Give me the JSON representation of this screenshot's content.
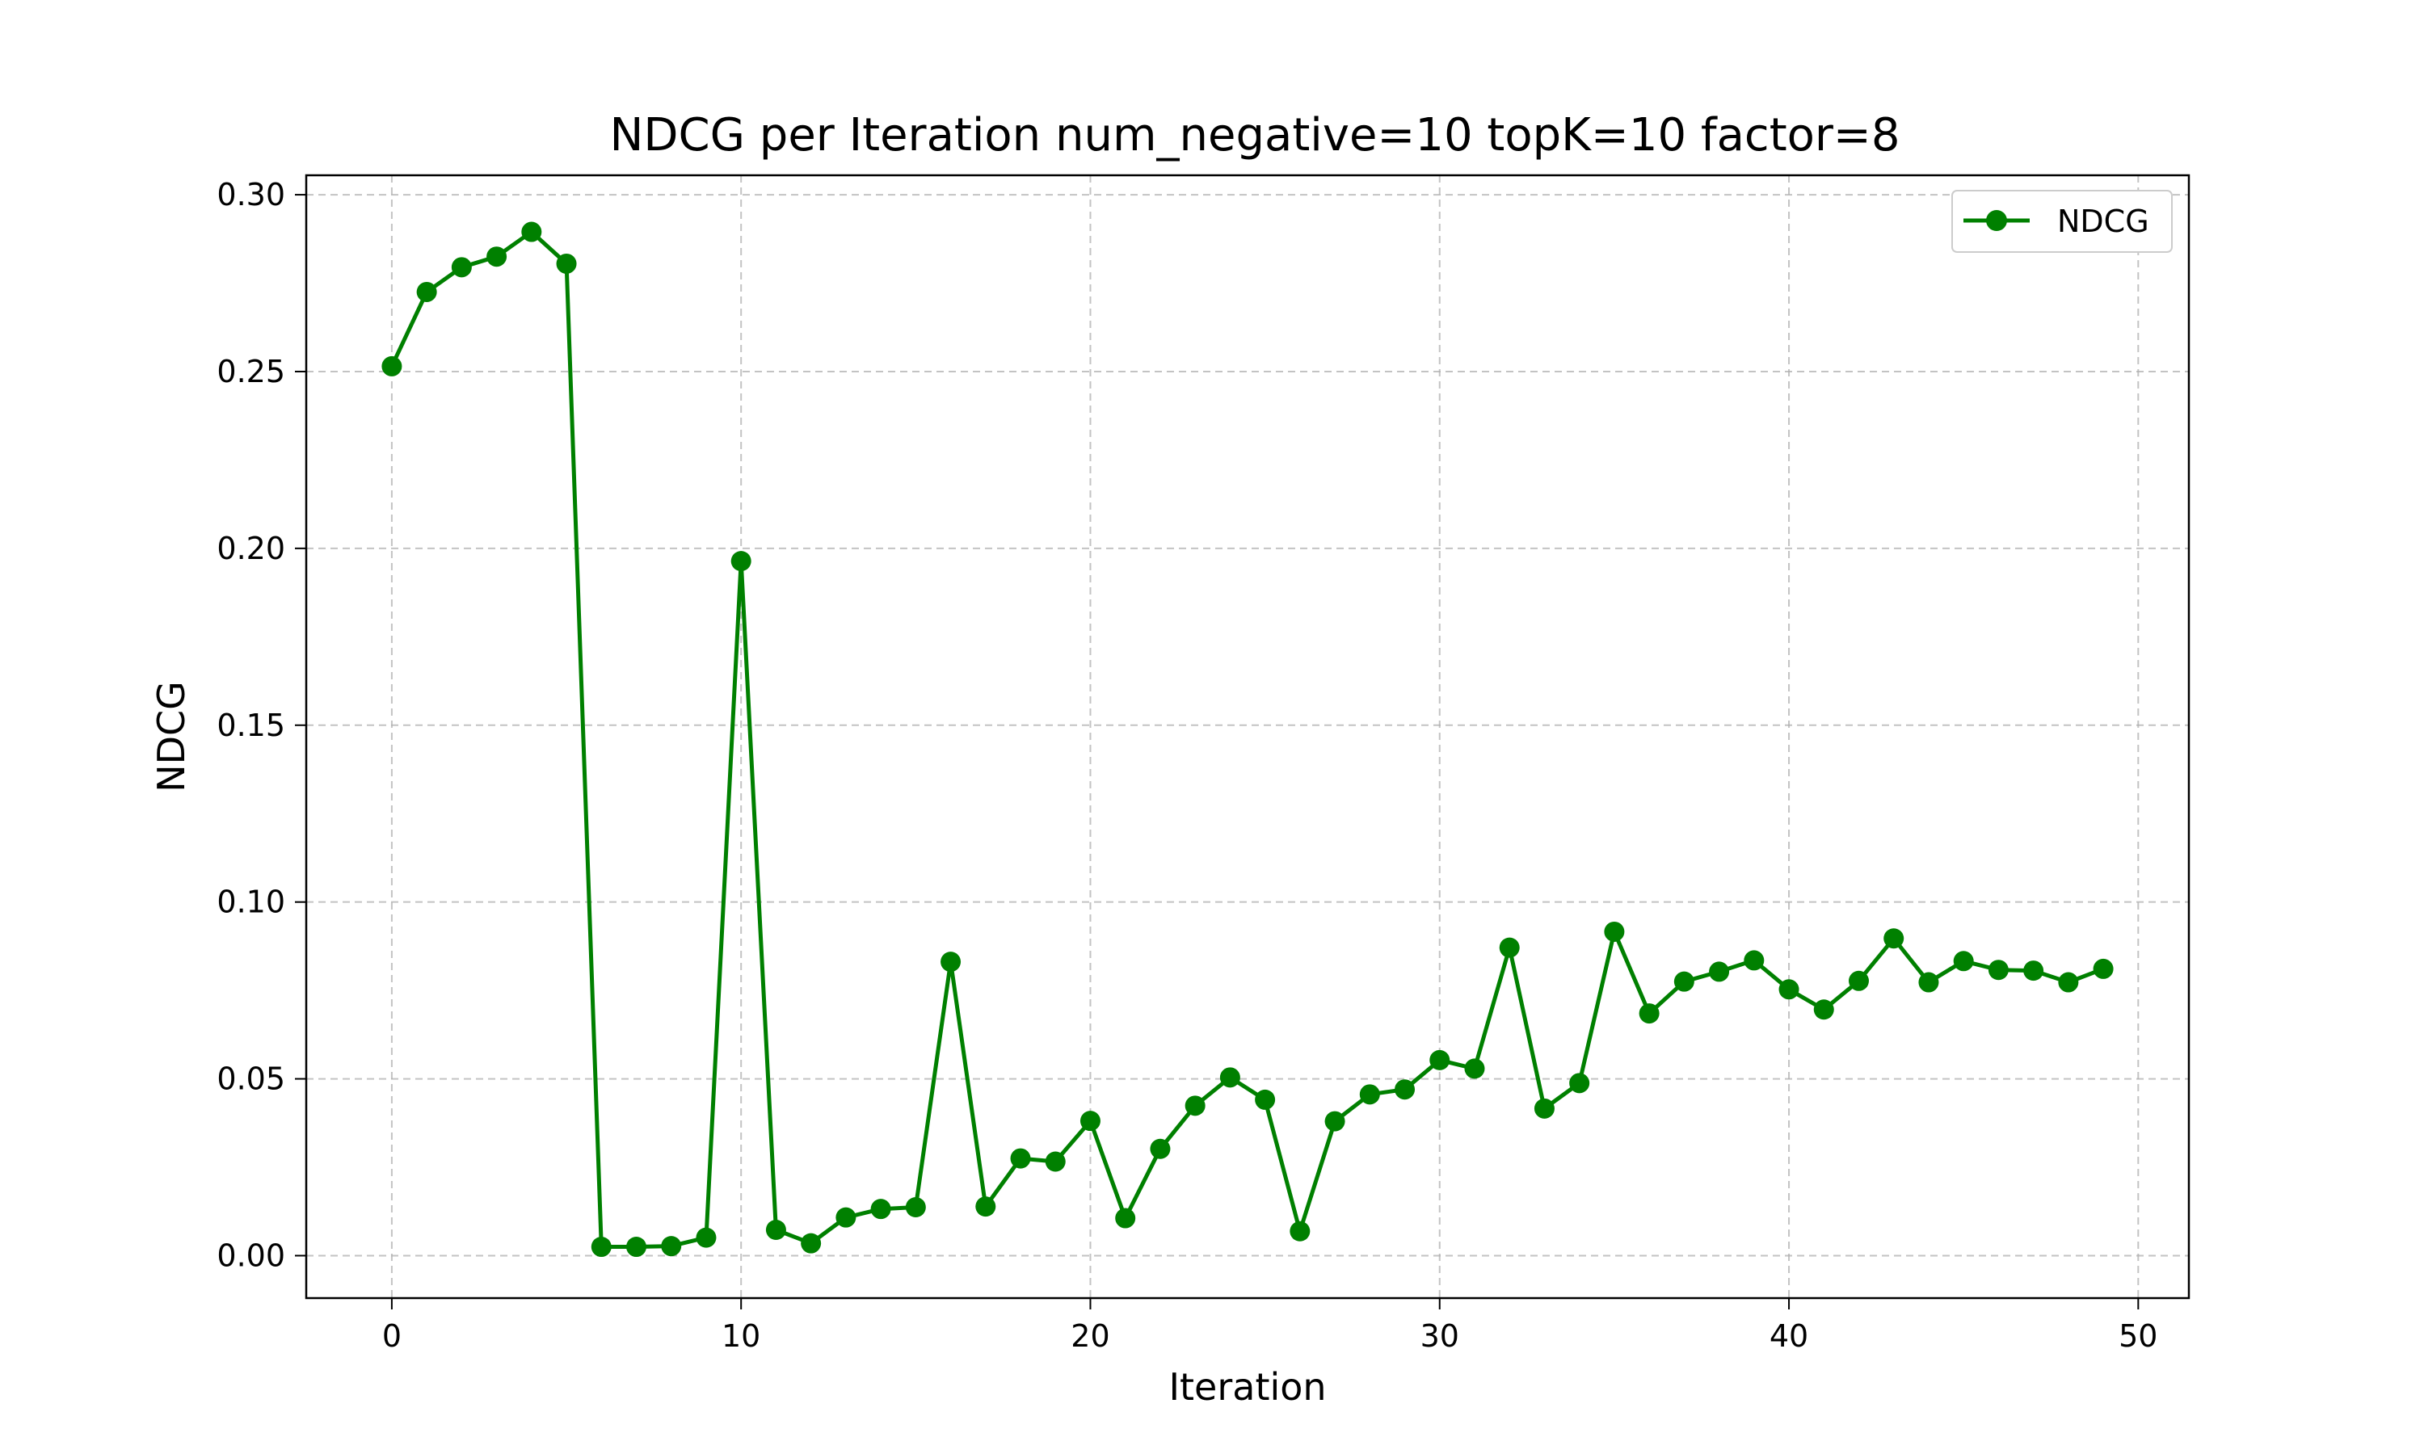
{
  "chart_data": {
    "type": "line",
    "title": "NDCG per Iteration num_negative=10 topK=10 factor=8",
    "xlabel": "Iteration",
    "ylabel": "NDCG",
    "xlim": [
      -2.45,
      51.45
    ],
    "ylim": [
      -0.012,
      0.3055
    ],
    "grid": true,
    "legend_position": "top-right",
    "x_ticks": [
      0,
      10,
      20,
      30,
      40,
      50
    ],
    "x_tick_labels": [
      "0",
      "10",
      "20",
      "30",
      "40",
      "50"
    ],
    "y_ticks": [
      0.0,
      0.05,
      0.1,
      0.15,
      0.2,
      0.25,
      0.3
    ],
    "y_tick_labels": [
      "0.00",
      "0.05",
      "0.10",
      "0.15",
      "0.20",
      "0.25",
      "0.30"
    ],
    "series": [
      {
        "name": "NDCG",
        "color": "#008000",
        "marker": "circle",
        "x": [
          0,
          1,
          2,
          3,
          4,
          5,
          6,
          7,
          8,
          9,
          10,
          11,
          12,
          13,
          14,
          15,
          16,
          17,
          18,
          19,
          20,
          21,
          22,
          23,
          24,
          25,
          26,
          27,
          28,
          29,
          30,
          31,
          32,
          33,
          34,
          35,
          36,
          37,
          38,
          39,
          40,
          41,
          42,
          43,
          44,
          45,
          46,
          47,
          48,
          49
        ],
        "values": [
          0.2515,
          0.2725,
          0.2795,
          0.2825,
          0.2895,
          0.2805,
          0.0025,
          0.0025,
          0.0027,
          0.0051,
          0.1964,
          0.0073,
          0.0035,
          0.0108,
          0.0132,
          0.0137,
          0.0831,
          0.0139,
          0.0275,
          0.0266,
          0.0381,
          0.0106,
          0.0302,
          0.0424,
          0.0504,
          0.0441,
          0.0069,
          0.038,
          0.0456,
          0.047,
          0.0553,
          0.0529,
          0.0871,
          0.0416,
          0.0488,
          0.0916,
          0.0685,
          0.0775,
          0.0803,
          0.0835,
          0.0753,
          0.0696,
          0.0777,
          0.0897,
          0.0773,
          0.0833,
          0.0808,
          0.0806,
          0.0773,
          0.0811
        ]
      }
    ]
  }
}
